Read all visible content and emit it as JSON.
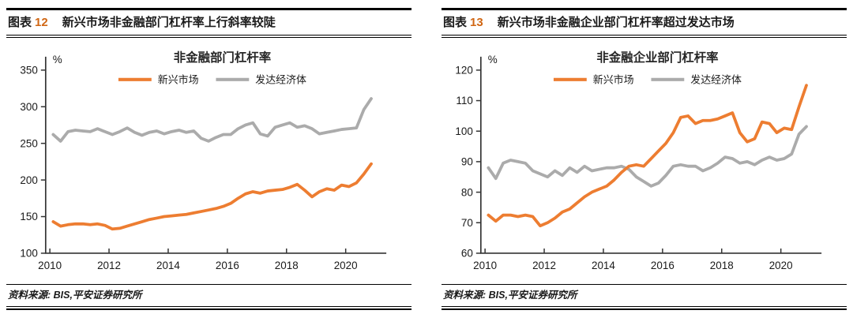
{
  "colors": {
    "accent_orange": "#ED7D31",
    "line_gray": "#ABABAB",
    "figure_number": "#D06613",
    "axis": "#333333",
    "text": "#1a1a1a"
  },
  "panels": [
    {
      "header": {
        "tag": "图表",
        "number": "12",
        "title": "新兴市场非金融部门杠杆率上行斜率较陡"
      },
      "source": {
        "text": "资料来源: BIS,平安证券研究所"
      }
    },
    {
      "header": {
        "tag": "图表",
        "number": "13",
        "title": "新兴市场非金融企业部门杠杆率超过发达市场"
      },
      "source": {
        "text": "资料来源: BIS,平安证券研究所"
      }
    }
  ],
  "chart_data": [
    {
      "type": "line",
      "title": "非金融部门杠杆率",
      "ylabel": "%",
      "xlabel": "",
      "grid": false,
      "legend_position": "top-center",
      "ylim": [
        100,
        350
      ],
      "ytick_step": 50,
      "x_range": "2010Q1-2020Q4 quarterly",
      "x_tick_labels": [
        "2010",
        "2012",
        "2014",
        "2016",
        "2018",
        "2020"
      ],
      "x_tick_quarter_index": [
        0,
        8,
        16,
        24,
        32,
        40
      ],
      "series": [
        {
          "name": "新兴市场",
          "color": "#ED7D31",
          "values": [
            143,
            137,
            139,
            140,
            140,
            139,
            140,
            138,
            133,
            134,
            137,
            140,
            143,
            146,
            148,
            150,
            151,
            152,
            153,
            155,
            157,
            159,
            161,
            164,
            168,
            175,
            181,
            184,
            182,
            185,
            186,
            187,
            190,
            194,
            186,
            177,
            184,
            188,
            186,
            193,
            191,
            196,
            208,
            222
          ]
        },
        {
          "name": "发达经济体",
          "color": "#ABABAB",
          "values": [
            262,
            253,
            266,
            268,
            267,
            266,
            270,
            266,
            262,
            266,
            271,
            265,
            261,
            265,
            267,
            263,
            266,
            268,
            265,
            267,
            257,
            253,
            258,
            262,
            262,
            270,
            275,
            278,
            263,
            260,
            272,
            275,
            278,
            272,
            274,
            270,
            263,
            265,
            267,
            269,
            270,
            271,
            296,
            311
          ]
        }
      ]
    },
    {
      "type": "line",
      "title": "非金融企业部门杠杆率",
      "ylabel": "%",
      "xlabel": "",
      "grid": false,
      "legend_position": "top-center",
      "ylim": [
        60,
        120
      ],
      "ytick_step": 10,
      "x_range": "2010Q1-2020Q4 quarterly",
      "x_tick_labels": [
        "2010",
        "2012",
        "2014",
        "2016",
        "2018",
        "2020"
      ],
      "x_tick_quarter_index": [
        0,
        8,
        16,
        24,
        32,
        40
      ],
      "series": [
        {
          "name": "新兴市场",
          "color": "#ED7D31",
          "values": [
            72.5,
            70.5,
            72.5,
            72.5,
            72,
            72.5,
            72,
            69,
            70,
            71.5,
            73.5,
            74.5,
            76.5,
            78.5,
            80,
            81,
            82,
            84,
            86.5,
            88.5,
            89,
            88.5,
            91,
            93.5,
            96,
            99.5,
            104.5,
            105,
            102.5,
            103.5,
            103.5,
            104,
            105,
            106,
            99.5,
            96.5,
            97.5,
            103,
            102.5,
            99.5,
            101,
            100.5,
            108,
            115
          ]
        },
        {
          "name": "发达经济体",
          "color": "#ABABAB",
          "values": [
            88,
            84.5,
            89.5,
            90.5,
            90,
            89.5,
            87,
            86,
            85,
            87,
            85.5,
            88,
            86.5,
            88.5,
            87,
            87.5,
            88,
            88,
            88.5,
            87.5,
            85,
            83.5,
            82,
            83,
            85.5,
            88.5,
            89,
            88.5,
            88.5,
            87,
            88,
            89.5,
            91.5,
            91,
            89.5,
            90,
            89,
            90.5,
            91.5,
            90.5,
            91,
            92.5,
            99,
            101.5
          ]
        }
      ]
    }
  ]
}
